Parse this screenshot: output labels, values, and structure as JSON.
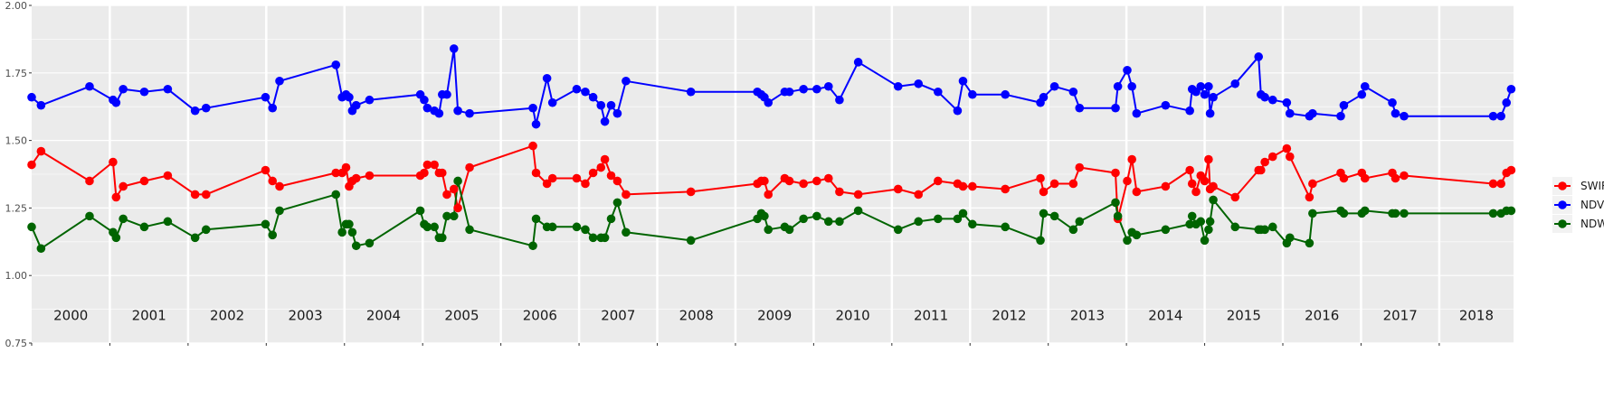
{
  "chart_data": {
    "type": "line",
    "title": "",
    "xlabel": "",
    "ylabel": "",
    "xlim": [
      2000.0,
      2018.95
    ],
    "ylim": [
      0.75,
      2.0
    ],
    "y_ticks": [
      0.75,
      1.0,
      1.25,
      1.5,
      1.75,
      2.0
    ],
    "y_tick_labels": [
      "0.75",
      "1.00",
      "1.25",
      "1.50",
      "1.75",
      "2.00"
    ],
    "grid": true,
    "legend_position": "right",
    "year_bands": [
      {
        "year": 2000,
        "label": "2000"
      },
      {
        "year": 2001,
        "label": "2001"
      },
      {
        "year": 2002,
        "label": "2002"
      },
      {
        "year": 2003,
        "label": "2003"
      },
      {
        "year": 2004,
        "label": "2004"
      },
      {
        "year": 2005,
        "label": "2005"
      },
      {
        "year": 2006,
        "label": "2006"
      },
      {
        "year": 2007,
        "label": "2007"
      },
      {
        "year": 2008,
        "label": "2008"
      },
      {
        "year": 2009,
        "label": "2009"
      },
      {
        "year": 2010,
        "label": "2010"
      },
      {
        "year": 2011,
        "label": "2011"
      },
      {
        "year": 2012,
        "label": "2012"
      },
      {
        "year": 2013,
        "label": "2013"
      },
      {
        "year": 2014,
        "label": "2014"
      },
      {
        "year": 2015,
        "label": "2015"
      },
      {
        "year": 2016,
        "label": "2016"
      },
      {
        "year": 2017,
        "label": "2017"
      },
      {
        "year": 2018,
        "label": "2018"
      }
    ],
    "series": [
      {
        "name": "SWIR",
        "color": "#ff0000",
        "x": [
          2000.0,
          2000.12,
          2000.74,
          2001.04,
          2001.08,
          2001.17,
          2001.44,
          2001.74,
          2002.09,
          2002.23,
          2002.99,
          2003.08,
          2003.17,
          2003.89,
          2003.97,
          2004.02,
          2004.06,
          2004.1,
          2004.15,
          2004.32,
          2004.97,
          2005.02,
          2005.06,
          2005.15,
          2005.21,
          2005.25,
          2005.31,
          2005.4,
          2005.45,
          2005.6,
          2006.41,
          2006.45,
          2006.59,
          2006.66,
          2006.97,
          2007.08,
          2007.18,
          2007.28,
          2007.33,
          2007.41,
          2007.49,
          2007.6,
          2008.43,
          2009.28,
          2009.33,
          2009.37,
          2009.42,
          2009.63,
          2009.69,
          2009.87,
          2010.04,
          2010.19,
          2010.33,
          2010.57,
          2011.08,
          2011.34,
          2011.59,
          2011.84,
          2011.91,
          2012.03,
          2012.45,
          2012.9,
          2012.94,
          2013.08,
          2013.32,
          2013.4,
          2013.86,
          2013.89,
          2014.01,
          2014.07,
          2014.13,
          2014.5,
          2014.81,
          2014.84,
          2014.89,
          2014.95,
          2015.0,
          2015.05,
          2015.07,
          2015.11,
          2015.39,
          2015.69,
          2015.72,
          2015.77,
          2015.87,
          2016.05,
          2016.09,
          2016.34,
          2016.38,
          2016.74,
          2016.78,
          2017.01,
          2017.05,
          2017.4,
          2017.44,
          2017.55,
          2018.69,
          2018.79,
          2018.86,
          2018.92
        ],
        "values": [
          1.41,
          1.46,
          1.35,
          1.42,
          1.29,
          1.33,
          1.35,
          1.37,
          1.3,
          1.3,
          1.39,
          1.35,
          1.33,
          1.38,
          1.38,
          1.4,
          1.33,
          1.35,
          1.36,
          1.37,
          1.37,
          1.38,
          1.41,
          1.41,
          1.38,
          1.38,
          1.3,
          1.32,
          1.25,
          1.4,
          1.48,
          1.38,
          1.34,
          1.36,
          1.36,
          1.34,
          1.38,
          1.4,
          1.43,
          1.37,
          1.35,
          1.3,
          1.31,
          1.34,
          1.35,
          1.35,
          1.3,
          1.36,
          1.35,
          1.34,
          1.35,
          1.36,
          1.31,
          1.3,
          1.32,
          1.3,
          1.35,
          1.34,
          1.33,
          1.33,
          1.32,
          1.36,
          1.31,
          1.34,
          1.34,
          1.4,
          1.38,
          1.21,
          1.35,
          1.43,
          1.31,
          1.33,
          1.39,
          1.34,
          1.31,
          1.37,
          1.35,
          1.43,
          1.32,
          1.33,
          1.29,
          1.39,
          1.39,
          1.42,
          1.44,
          1.47,
          1.44,
          1.29,
          1.34,
          1.38,
          1.36,
          1.38,
          1.36,
          1.38,
          1.36,
          1.37,
          1.34,
          1.34,
          1.38,
          1.39
        ]
      },
      {
        "name": "NDVI",
        "color": "#0000ff",
        "x": [
          2000.0,
          2000.12,
          2000.74,
          2001.04,
          2001.08,
          2001.17,
          2001.44,
          2001.74,
          2002.09,
          2002.23,
          2002.99,
          2003.08,
          2003.17,
          2003.89,
          2003.97,
          2004.02,
          2004.06,
          2004.1,
          2004.15,
          2004.32,
          2004.97,
          2005.02,
          2005.06,
          2005.15,
          2005.21,
          2005.25,
          2005.31,
          2005.4,
          2005.45,
          2005.6,
          2006.41,
          2006.45,
          2006.59,
          2006.66,
          2006.97,
          2007.08,
          2007.18,
          2007.28,
          2007.33,
          2007.41,
          2007.49,
          2007.6,
          2008.43,
          2009.28,
          2009.33,
          2009.37,
          2009.42,
          2009.63,
          2009.69,
          2009.87,
          2010.04,
          2010.19,
          2010.33,
          2010.57,
          2011.08,
          2011.34,
          2011.59,
          2011.84,
          2011.91,
          2012.03,
          2012.45,
          2012.9,
          2012.94,
          2013.08,
          2013.32,
          2013.4,
          2013.86,
          2013.89,
          2014.01,
          2014.07,
          2014.13,
          2014.5,
          2014.81,
          2014.84,
          2014.89,
          2014.95,
          2015.0,
          2015.05,
          2015.07,
          2015.11,
          2015.39,
          2015.69,
          2015.72,
          2015.77,
          2015.87,
          2016.05,
          2016.09,
          2016.34,
          2016.38,
          2016.74,
          2016.78,
          2017.01,
          2017.05,
          2017.4,
          2017.44,
          2017.55,
          2018.69,
          2018.79,
          2018.86,
          2018.92
        ],
        "values": [
          1.66,
          1.63,
          1.7,
          1.65,
          1.64,
          1.69,
          1.68,
          1.69,
          1.61,
          1.62,
          1.66,
          1.62,
          1.72,
          1.78,
          1.66,
          1.67,
          1.66,
          1.61,
          1.63,
          1.65,
          1.67,
          1.65,
          1.62,
          1.61,
          1.6,
          1.67,
          1.67,
          1.84,
          1.61,
          1.6,
          1.62,
          1.56,
          1.73,
          1.64,
          1.69,
          1.68,
          1.66,
          1.63,
          1.57,
          1.63,
          1.6,
          1.72,
          1.68,
          1.68,
          1.67,
          1.66,
          1.64,
          1.68,
          1.68,
          1.69,
          1.69,
          1.7,
          1.65,
          1.79,
          1.7,
          1.71,
          1.68,
          1.61,
          1.72,
          1.67,
          1.67,
          1.64,
          1.66,
          1.7,
          1.68,
          1.62,
          1.62,
          1.7,
          1.76,
          1.7,
          1.6,
          1.63,
          1.61,
          1.69,
          1.68,
          1.7,
          1.67,
          1.7,
          1.6,
          1.66,
          1.71,
          1.81,
          1.67,
          1.66,
          1.65,
          1.64,
          1.6,
          1.59,
          1.6,
          1.59,
          1.63,
          1.67,
          1.7,
          1.64,
          1.6,
          1.59,
          1.59,
          1.59,
          1.64,
          1.69
        ]
      },
      {
        "name": "NDWI",
        "color": "#006400",
        "x": [
          2000.0,
          2000.12,
          2000.74,
          2001.04,
          2001.08,
          2001.17,
          2001.44,
          2001.74,
          2002.09,
          2002.23,
          2002.99,
          2003.08,
          2003.17,
          2003.89,
          2003.97,
          2004.02,
          2004.06,
          2004.1,
          2004.15,
          2004.32,
          2004.97,
          2005.02,
          2005.06,
          2005.15,
          2005.21,
          2005.25,
          2005.31,
          2005.4,
          2005.45,
          2005.6,
          2006.41,
          2006.45,
          2006.59,
          2006.66,
          2006.97,
          2007.08,
          2007.18,
          2007.28,
          2007.33,
          2007.41,
          2007.49,
          2007.6,
          2008.43,
          2009.28,
          2009.33,
          2009.37,
          2009.42,
          2009.63,
          2009.69,
          2009.87,
          2010.04,
          2010.19,
          2010.33,
          2010.57,
          2011.08,
          2011.34,
          2011.59,
          2011.84,
          2011.91,
          2012.03,
          2012.45,
          2012.9,
          2012.94,
          2013.08,
          2013.32,
          2013.4,
          2013.86,
          2013.89,
          2014.01,
          2014.07,
          2014.13,
          2014.5,
          2014.81,
          2014.84,
          2014.89,
          2014.95,
          2015.0,
          2015.05,
          2015.07,
          2015.11,
          2015.39,
          2015.69,
          2015.72,
          2015.77,
          2015.87,
          2016.05,
          2016.09,
          2016.34,
          2016.38,
          2016.74,
          2016.78,
          2017.01,
          2017.05,
          2017.4,
          2017.44,
          2017.55,
          2018.69,
          2018.79,
          2018.86,
          2018.92
        ],
        "values": [
          1.18,
          1.1,
          1.22,
          1.16,
          1.14,
          1.21,
          1.18,
          1.2,
          1.14,
          1.17,
          1.19,
          1.15,
          1.24,
          1.3,
          1.16,
          1.19,
          1.19,
          1.16,
          1.11,
          1.12,
          1.24,
          1.19,
          1.18,
          1.18,
          1.14,
          1.14,
          1.22,
          1.22,
          1.35,
          1.17,
          1.11,
          1.21,
          1.18,
          1.18,
          1.18,
          1.17,
          1.14,
          1.14,
          1.14,
          1.21,
          1.27,
          1.16,
          1.13,
          1.21,
          1.23,
          1.22,
          1.17,
          1.18,
          1.17,
          1.21,
          1.22,
          1.2,
          1.2,
          1.24,
          1.17,
          1.2,
          1.21,
          1.21,
          1.23,
          1.19,
          1.18,
          1.13,
          1.23,
          1.22,
          1.17,
          1.2,
          1.27,
          1.22,
          1.13,
          1.16,
          1.15,
          1.17,
          1.19,
          1.22,
          1.19,
          1.2,
          1.13,
          1.17,
          1.2,
          1.28,
          1.18,
          1.17,
          1.17,
          1.17,
          1.18,
          1.12,
          1.14,
          1.12,
          1.23,
          1.24,
          1.23,
          1.23,
          1.24,
          1.23,
          1.23,
          1.23,
          1.23,
          1.23,
          1.24,
          1.24
        ]
      }
    ]
  }
}
